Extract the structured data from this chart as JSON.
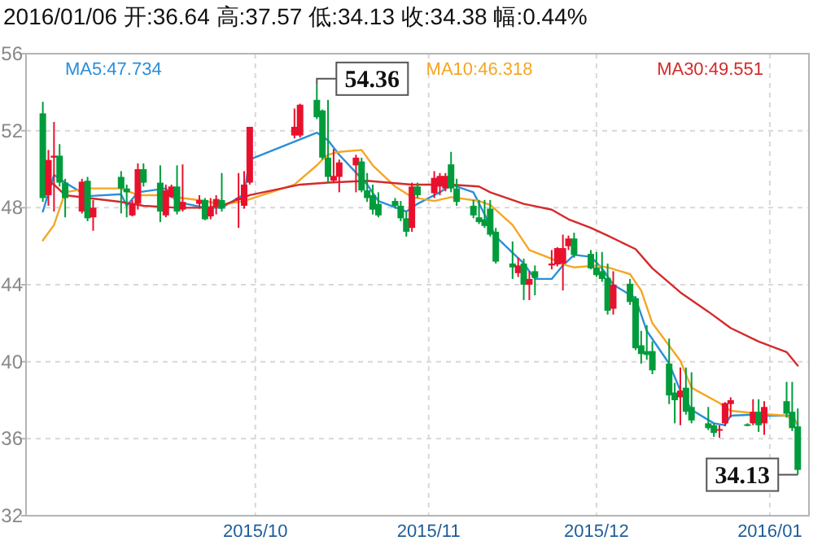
{
  "chart_data": {
    "type": "candlestick",
    "title": "2016/01/06 开:36.64 高:37.57 低:34.13 收:34.38 幅:0.44%",
    "x": [
      "2015-08-24",
      "2015-08-25",
      "2015-08-26",
      "2015-08-27",
      "2015-08-28",
      "2015-08-31",
      "2015-09-01",
      "2015-09-02",
      "2015-09-07",
      "2015-09-08",
      "2015-09-09",
      "2015-09-10",
      "2015-09-11",
      "2015-09-14",
      "2015-09-15",
      "2015-09-16",
      "2015-09-17",
      "2015-09-18",
      "2015-09-21",
      "2015-09-22",
      "2015-09-23",
      "2015-09-24",
      "2015-09-25",
      "2015-09-28",
      "2015-09-29",
      "2015-09-30",
      "2015-10-08",
      "2015-10-09",
      "2015-10-12",
      "2015-10-13",
      "2015-10-14",
      "2015-10-15",
      "2015-10-16",
      "2015-10-19",
      "2015-10-20",
      "2015-10-21",
      "2015-10-22",
      "2015-10-23",
      "2015-10-26",
      "2015-10-27",
      "2015-10-28",
      "2015-10-29",
      "2015-10-30",
      "2015-11-02",
      "2015-11-03",
      "2015-11-04",
      "2015-11-05",
      "2015-11-06",
      "2015-11-09",
      "2015-11-10",
      "2015-11-11",
      "2015-11-12",
      "2015-11-13",
      "2015-11-16",
      "2015-11-17",
      "2015-11-18",
      "2015-11-19",
      "2015-11-20",
      "2015-11-23",
      "2015-11-24",
      "2015-11-25",
      "2015-11-26",
      "2015-11-27",
      "2015-11-30",
      "2015-12-01",
      "2015-12-02",
      "2015-12-03",
      "2015-12-04",
      "2015-12-07",
      "2015-12-08",
      "2015-12-09",
      "2015-12-10",
      "2015-12-11",
      "2015-12-14",
      "2015-12-15",
      "2015-12-16",
      "2015-12-17",
      "2015-12-18",
      "2015-12-21",
      "2015-12-22",
      "2015-12-23",
      "2015-12-24",
      "2015-12-25",
      "2015-12-28",
      "2015-12-29",
      "2015-12-30",
      "2015-12-31",
      "2016-01-04",
      "2016-01-05",
      "2016-01-06"
    ],
    "ohlc": [
      [
        52.9,
        53.5,
        48.3,
        48.5
      ],
      [
        48.65,
        51.0,
        48.1,
        50.48
      ],
      [
        50.6,
        52.45,
        47.8,
        50.7
      ],
      [
        50.7,
        51.3,
        49.1,
        49.3
      ],
      [
        49.3,
        49.5,
        47.5,
        48.5
      ],
      [
        47.8,
        49.5,
        47.7,
        49.35
      ],
      [
        49.4,
        49.6,
        47.3,
        47.45
      ],
      [
        47.5,
        48.4,
        46.8,
        48.0
      ],
      [
        49.6,
        49.9,
        47.7,
        49.0
      ],
      [
        49.0,
        49.2,
        47.5,
        48.8
      ],
      [
        47.6,
        48.4,
        47.55,
        48.2
      ],
      [
        48.2,
        50.3,
        47.9,
        50.0
      ],
      [
        50.0,
        50.3,
        49.1,
        49.3
      ],
      [
        49.3,
        50.2,
        47.25,
        47.8
      ],
      [
        47.6,
        49.2,
        47.5,
        48.9
      ],
      [
        48.55,
        49.2,
        48.5,
        49.1
      ],
      [
        49.1,
        50.2,
        47.65,
        47.8
      ],
      [
        47.9,
        50.25,
        47.8,
        48.3
      ],
      [
        48.2,
        48.65,
        47.95,
        48.4
      ],
      [
        48.4,
        48.5,
        47.35,
        47.4
      ],
      [
        47.55,
        48.5,
        47.4,
        48.0
      ],
      [
        48.1,
        48.65,
        47.65,
        48.45
      ],
      [
        48.4,
        49.8,
        47.8,
        47.95
      ],
      [
        48.4,
        49.8,
        46.95,
        48.5
      ],
      [
        48.1,
        49.9,
        47.95,
        49.2
      ],
      [
        49.3,
        52.2,
        49.2,
        52.2
      ],
      [
        51.75,
        53.15,
        51.6,
        52.2
      ],
      [
        51.75,
        53.4,
        51.65,
        53.35
      ],
      [
        53.6,
        54.36,
        52.6,
        52.7
      ],
      [
        53.05,
        53.1,
        50.5,
        50.6
      ],
      [
        50.6,
        53.6,
        49.3,
        49.6
      ],
      [
        49.4,
        51.05,
        49.3,
        49.65
      ],
      [
        49.6,
        50.5,
        48.8,
        50.35
      ],
      [
        50.2,
        50.75,
        48.8,
        50.6
      ],
      [
        50.4,
        50.6,
        48.8,
        48.9
      ],
      [
        48.9,
        49.8,
        48.3,
        48.5
      ],
      [
        48.65,
        49.2,
        47.65,
        47.9
      ],
      [
        48.2,
        48.8,
        47.5,
        47.6
      ],
      [
        48.35,
        48.5,
        47.95,
        48.1
      ],
      [
        48.1,
        48.35,
        47.3,
        47.45
      ],
      [
        47.45,
        47.8,
        46.5,
        46.75
      ],
      [
        46.95,
        49.3,
        46.75,
        49.1
      ],
      [
        49.1,
        49.3,
        48.5,
        48.65
      ],
      [
        48.75,
        49.9,
        48.5,
        49.55
      ],
      [
        49.1,
        49.8,
        48.65,
        49.65
      ],
      [
        49.0,
        49.8,
        48.85,
        49.65
      ],
      [
        50.25,
        50.9,
        48.8,
        49.0
      ],
      [
        49.0,
        49.5,
        48.1,
        48.3
      ],
      [
        48.1,
        48.4,
        47.45,
        47.6
      ],
      [
        47.5,
        48.4,
        47.15,
        47.25
      ],
      [
        47.4,
        48.4,
        46.95,
        47.05
      ],
      [
        47.95,
        48.4,
        46.5,
        46.6
      ],
      [
        46.75,
        46.95,
        45.1,
        45.2
      ],
      [
        45.1,
        46.25,
        44.3,
        44.9
      ],
      [
        44.6,
        45.4,
        44.4,
        45.0
      ],
      [
        45.1,
        45.35,
        43.2,
        44.0
      ],
      [
        44.0,
        44.7,
        43.2,
        44.3
      ],
      [
        44.7,
        45.0,
        43.45,
        44.35
      ],
      [
        45.0,
        45.8,
        44.8,
        45.1
      ],
      [
        45.05,
        45.95,
        44.95,
        45.9
      ],
      [
        45.1,
        46.6,
        43.7,
        45.9
      ],
      [
        46.0,
        46.55,
        45.8,
        46.4
      ],
      [
        46.4,
        46.7,
        45.4,
        45.55
      ],
      [
        45.6,
        45.8,
        44.8,
        44.85
      ],
      [
        44.9,
        45.7,
        44.4,
        44.5
      ],
      [
        44.7,
        45.7,
        44.15,
        44.3
      ],
      [
        44.35,
        45.1,
        42.45,
        42.65
      ],
      [
        42.75,
        44.7,
        42.45,
        44.0
      ],
      [
        44.05,
        44.3,
        42.95,
        43.1
      ],
      [
        43.3,
        43.4,
        40.6,
        40.7
      ],
      [
        40.85,
        41.6,
        39.9,
        40.4
      ],
      [
        40.55,
        41.9,
        40.1,
        40.35
      ],
      [
        40.55,
        41.05,
        39.35,
        39.55
      ],
      [
        39.9,
        41.2,
        37.8,
        38.25
      ],
      [
        38.4,
        38.9,
        36.8,
        38.0
      ],
      [
        38.15,
        39.7,
        36.7,
        38.5
      ],
      [
        38.65,
        39.7,
        37.25,
        37.4
      ],
      [
        37.65,
        39.45,
        36.8,
        36.95
      ],
      [
        36.8,
        37.65,
        36.45,
        36.55
      ],
      [
        36.7,
        36.8,
        36.1,
        36.3
      ],
      [
        36.45,
        36.7,
        36.05,
        36.5
      ],
      [
        36.8,
        37.9,
        36.65,
        37.85
      ],
      [
        37.8,
        38.15,
        37.1,
        38.0
      ],
      [
        36.75,
        36.8,
        36.65,
        36.7
      ],
      [
        36.8,
        38.05,
        36.7,
        37.4
      ],
      [
        37.4,
        38.05,
        36.35,
        36.7
      ],
      [
        36.8,
        37.95,
        36.2,
        37.65
      ],
      [
        37.95,
        38.95,
        37.1,
        37.3
      ],
      [
        37.4,
        38.95,
        36.4,
        36.55
      ],
      [
        36.64,
        37.57,
        34.13,
        34.38
      ]
    ],
    "colors": [
      "#009c3b",
      "#e8112d",
      "#e8112d",
      "#009c3b",
      "#009c3b",
      "#e8112d",
      "#009c3b",
      "#e8112d",
      "#009c3b",
      "#009c3b",
      "#e8112d",
      "#e8112d",
      "#009c3b",
      "#009c3b",
      "#e8112d",
      "#e8112d",
      "#009c3b",
      "#e8112d",
      "#e8112d",
      "#009c3b",
      "#e8112d",
      "#e8112d",
      "#009c3b",
      "#e8112d",
      "#e8112d",
      "#e8112d",
      "#e8112d",
      "#e8112d",
      "#009c3b",
      "#009c3b",
      "#009c3b",
      "#e8112d",
      "#e8112d",
      "#e8112d",
      "#009c3b",
      "#009c3b",
      "#009c3b",
      "#009c3b",
      "#009c3b",
      "#009c3b",
      "#009c3b",
      "#e8112d",
      "#009c3b",
      "#e8112d",
      "#e8112d",
      "#e8112d",
      "#009c3b",
      "#009c3b",
      "#009c3b",
      "#009c3b",
      "#009c3b",
      "#009c3b",
      "#009c3b",
      "#009c3b",
      "#e8112d",
      "#009c3b",
      "#e8112d",
      "#009c3b",
      "#e8112d",
      "#e8112d",
      "#e8112d",
      "#e8112d",
      "#009c3b",
      "#009c3b",
      "#009c3b",
      "#009c3b",
      "#009c3b",
      "#e8112d",
      "#009c3b",
      "#009c3b",
      "#009c3b",
      "#009c3b",
      "#009c3b",
      "#009c3b",
      "#009c3b",
      "#e8112d",
      "#009c3b",
      "#009c3b",
      "#009c3b",
      "#009c3b",
      "#e8112d",
      "#e8112d",
      "#e8112d",
      "#009c3b",
      "#e8112d",
      "#009c3b",
      "#e8112d",
      "#009c3b",
      "#009c3b",
      "#009c3b"
    ],
    "series": [
      {
        "name": "MA5:47.734",
        "type": "line",
        "color": "#2b8fd8",
        "x": [
          "2015-08-24",
          "2015-08-26",
          "2015-08-28",
          "2015-09-01",
          "2015-09-07",
          "2015-09-08",
          "2015-09-10",
          "2015-09-15",
          "2015-09-17",
          "2015-09-22",
          "2015-09-25",
          "2015-09-29",
          "2015-09-30",
          "2015-10-12",
          "2015-10-14",
          "2015-10-16",
          "2015-10-21",
          "2015-10-23",
          "2015-10-28",
          "2015-10-30",
          "2015-11-03",
          "2015-11-05",
          "2015-11-09",
          "2015-11-11",
          "2015-11-13",
          "2015-11-18",
          "2015-11-20",
          "2015-11-23",
          "2015-11-25",
          "2015-11-27",
          "2015-11-30",
          "2015-12-02",
          "2015-12-04",
          "2015-12-08",
          "2015-12-10",
          "2015-12-14",
          "2015-12-16",
          "2015-12-18",
          "2015-12-22",
          "2015-12-23",
          "2015-12-24",
          "2015-12-25",
          "2015-12-29",
          "2015-12-31",
          "2016-01-05",
          "2016-01-06"
        ],
        "values": [
          47.8,
          49.7,
          49.3,
          48.6,
          48.7,
          48.1,
          48.8,
          49.0,
          48.3,
          48.0,
          48.0,
          48.7,
          50.5,
          51.9,
          51.5,
          50.75,
          49.2,
          48.35,
          47.8,
          48.2,
          48.8,
          49.2,
          48.8,
          47.65,
          46.5,
          45.1,
          44.3,
          44.3,
          45.0,
          45.55,
          45.45,
          44.85,
          44.0,
          43.3,
          41.6,
          39.9,
          38.5,
          37.5,
          36.8,
          36.75,
          36.7,
          37.2,
          37.25,
          37.2,
          37.2,
          36.7
        ]
      },
      {
        "name": "MA10:46.318",
        "type": "line",
        "color": "#f5a623",
        "x": [
          "2015-08-24",
          "2015-08-26",
          "2015-08-28",
          "2015-09-01",
          "2015-09-07",
          "2015-09-10",
          "2015-09-15",
          "2015-09-18",
          "2015-09-22",
          "2015-09-25",
          "2015-09-29",
          "2015-10-08",
          "2015-10-12",
          "2015-10-13",
          "2015-10-14",
          "2015-10-16",
          "2015-10-20",
          "2015-10-22",
          "2015-10-26",
          "2015-10-29",
          "2015-11-02",
          "2015-11-05",
          "2015-11-10",
          "2015-11-12",
          "2015-11-16",
          "2015-11-19",
          "2015-11-23",
          "2015-11-25",
          "2015-11-27",
          "2015-12-01",
          "2015-12-03",
          "2015-12-07",
          "2015-12-09",
          "2015-12-11",
          "2015-12-16",
          "2015-12-18",
          "2015-12-23",
          "2015-12-25",
          "2015-12-30",
          "2016-01-04",
          "2016-01-06"
        ],
        "values": [
          46.3,
          47.1,
          48.8,
          49.0,
          49.0,
          48.65,
          48.65,
          48.5,
          48.35,
          48.15,
          48.35,
          49.2,
          50.2,
          50.5,
          50.75,
          50.9,
          51.0,
          50.2,
          49.1,
          48.55,
          48.35,
          48.55,
          48.35,
          48.15,
          47.1,
          45.8,
          45.35,
          45.05,
          44.9,
          45.0,
          44.9,
          44.55,
          43.7,
          42.0,
          40.05,
          38.65,
          37.85,
          37.45,
          37.3,
          37.2,
          36.8
        ]
      },
      {
        "name": "MA30:49.551",
        "type": "line",
        "color": "#d42a2a",
        "x": [
          "2015-08-24",
          "2015-08-26",
          "2015-08-28",
          "2015-09-07",
          "2015-09-11",
          "2015-09-17",
          "2015-09-22",
          "2015-09-25",
          "2015-09-30",
          "2015-10-09",
          "2015-10-14",
          "2015-10-21",
          "2015-10-29",
          "2015-11-05",
          "2015-11-10",
          "2015-11-12",
          "2015-11-18",
          "2015-11-23",
          "2015-11-26",
          "2015-11-30",
          "2015-12-03",
          "2015-12-08",
          "2015-12-11",
          "2015-12-16",
          "2015-12-21",
          "2015-12-25",
          "2015-12-30",
          "2016-01-04",
          "2016-01-06"
        ],
        "values": [
          49.5,
          49.2,
          48.65,
          48.3,
          48.1,
          48.0,
          48.0,
          48.1,
          48.65,
          49.2,
          49.3,
          49.4,
          49.2,
          49.2,
          49.1,
          48.8,
          48.2,
          47.9,
          47.4,
          46.95,
          46.55,
          45.85,
          44.85,
          43.6,
          42.6,
          41.75,
          41.05,
          40.5,
          39.8
        ]
      }
    ],
    "xlim": [
      "2015-08-21",
      "2016-01-08"
    ],
    "xticks": [
      {
        "value": "2015-10-01",
        "label": "2015/10"
      },
      {
        "value": "2015-11-01",
        "label": "2015/11"
      },
      {
        "value": "2015-12-01",
        "label": "2015/12"
      },
      {
        "value": "2016-01-01",
        "label": "2016/01"
      }
    ],
    "ylim": [
      32,
      56
    ],
    "yticks": [
      32,
      36,
      40,
      44,
      48,
      52,
      56
    ],
    "grid": true,
    "legend": "top",
    "annotations": [
      {
        "text": "54.36",
        "x": "2015-10-12",
        "y": 54.36
      },
      {
        "text": "34.13",
        "x": "2016-01-06",
        "y": 34.13
      }
    ]
  }
}
